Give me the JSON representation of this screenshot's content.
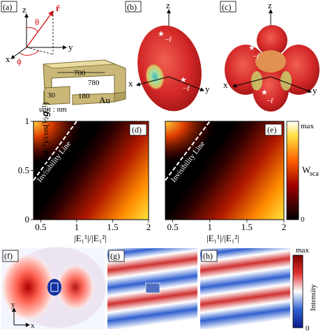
{
  "panels": {
    "a": {
      "tag": "(a)",
      "r_hat": "r̂",
      "theta": "θ",
      "phi": "ϕ",
      "x": "x",
      "y": "y",
      "z": "z",
      "dim_700": "700",
      "dim_780": "780",
      "dim_30": "30",
      "dim_180": "180",
      "material": "Au",
      "unit": "unit : nm"
    },
    "b": {
      "tag": "(b)",
      "z": "z",
      "x": "x",
      "y": "y",
      "star1": "−r̂",
      "star1_sup": "1",
      "star1_sub": "1",
      "star2": "−r̂",
      "star2_sup": "2",
      "star2_sub": "1"
    },
    "c": {
      "tag": "(c)",
      "z": "z",
      "x": "x",
      "y": "y",
      "star1": "−r̂",
      "star1_sup": "1",
      "star1_sub": "1",
      "star2": "−r̂",
      "star2_sup": "2",
      "star2_sub": "1"
    },
    "d": {
      "tag": "(d)",
      "annotation": "Invisibility Line"
    },
    "e": {
      "tag": "(e)",
      "annotation": "Invisibility Line"
    },
    "f": {
      "tag": "(f)",
      "axis_y": "y",
      "axis_x": "x"
    },
    "g": {
      "tag": "(g)"
    },
    "h": {
      "tag": "(h)"
    }
  },
  "colorbar_top": {
    "max": "max",
    "min": "0",
    "label": "W",
    "label_sub": "sca"
  },
  "colorbar_bottom": {
    "max": "max",
    "min": "0",
    "label": "Intensity"
  },
  "chart_data": [
    {
      "type": "heatmap",
      "panel": "d",
      "title": "",
      "ylabel": "cos(½𝒈₁²)/cos(½𝒈₁¹)",
      "xlabel": "|E₁¹|/|E₁²|",
      "xlim": [
        0.4,
        2.0
      ],
      "ylim": [
        0,
        1
      ],
      "xticks": [
        0.5,
        1,
        1.5,
        2
      ],
      "xtick_labels": [
        "0.5",
        "1",
        "1.5",
        "2"
      ],
      "yticks": [
        0,
        0.5,
        1
      ],
      "ytick_labels": [
        "0",
        "0.5",
        "1"
      ],
      "invisibility_line": {
        "x": [
          0.4,
          1.0
        ],
        "y": [
          0.4,
          1.0
        ]
      },
      "colormap": "hot"
    },
    {
      "type": "heatmap",
      "panel": "e",
      "title": "",
      "xlabel": "|E₁¹|/|E₁²|",
      "xlim": [
        0.4,
        2.0
      ],
      "ylim": [
        0,
        1
      ],
      "xticks": [
        0.5,
        1,
        1.5,
        2
      ],
      "xtick_labels": [
        "0.5",
        "1",
        "1.5",
        "2"
      ],
      "invisibility_line": {
        "x": [
          0.4,
          1.0
        ],
        "y": [
          0.4,
          1.0
        ]
      },
      "colormap": "hot"
    }
  ]
}
